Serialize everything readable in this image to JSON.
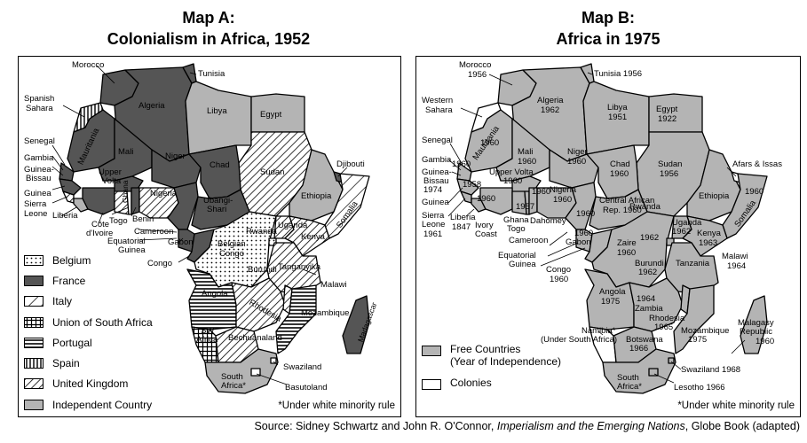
{
  "mapA": {
    "title_line1": "Map A:",
    "title_line2": "Colonialism in Africa, 1952",
    "legend": [
      {
        "label": "Belgium",
        "pattern": "dots"
      },
      {
        "label": "France",
        "pattern": "dark"
      },
      {
        "label": "Italy",
        "pattern": "sparse-diag"
      },
      {
        "label": "Union of South Africa",
        "pattern": "grid"
      },
      {
        "label": "Portugal",
        "pattern": "horiz"
      },
      {
        "label": "Spain",
        "pattern": "vert"
      },
      {
        "label": "United Kingdom",
        "pattern": "diag"
      },
      {
        "label": "Independent Country",
        "pattern": "gray"
      }
    ],
    "note": "*Under white minority rule",
    "labels": {
      "morocco": "Morocco",
      "tunisia": "Tunisia",
      "spanish_sahara_1": "Spanish",
      "spanish_sahara_2": "Sahara",
      "algeria": "Algeria",
      "libya": "Libya",
      "egypt": "Egypt",
      "senegal": "Senegal",
      "mauritania": "Mauritania",
      "mali": "Mali",
      "niger": "Niger",
      "chad": "Chad",
      "sudan": "Sudan",
      "djibouti": "Djibouti",
      "gambia": "Gambia",
      "guinea_bissau_1": "Guinea-",
      "guinea_bissau_2": "Bissau",
      "upper_volta_1": "Upper",
      "upper_volta_2": "Volta",
      "guinea": "Guinea",
      "sierra_leone_1": "Sierra",
      "sierra_leone_2": "Leone",
      "liberia": "Liberia",
      "ghana": "Ghana",
      "nigeria": "Nigeria",
      "ubangi_1": "Ubangi-",
      "ubangi_2": "Shari",
      "ethiopia": "Ethiopia",
      "somalia": "Somalia",
      "cote_1": "Côte",
      "cote_2": "d'Ivoire",
      "togo": "Togo",
      "benin": "Benin",
      "cameroon": "Cameroon",
      "eq_guinea_1": "Equatorial",
      "eq_guinea_2": "Guinea",
      "gabon": "Gabon",
      "congo": "Congo",
      "belgian_congo_1": "Belgian",
      "belgian_congo_2": "Congo",
      "rwanda": "Rwanda",
      "uganda": "Uganda",
      "kenya": "Kenya",
      "burundi": "Burundi",
      "tanganyika": "Tanganyika",
      "malawi": "Malawi",
      "angola": "Angola",
      "rhodesia": "Rhodesia",
      "mozambique": "Mozambique",
      "madagascar": "Madagascar",
      "sw_africa_1": "SW",
      "sw_africa_2": "Africa",
      "bechuanaland": "Bechuanaland",
      "swaziland": "Swaziland",
      "south_africa_1": "South",
      "south_africa_2": "Africa*",
      "basutoland": "Basutoland"
    }
  },
  "mapB": {
    "title_line1": "Map B:",
    "title_line2": "Africa in 1975",
    "legend": [
      {
        "label_1": "Free Countries",
        "label_2": "(Year of Independence)",
        "pattern": "gray"
      },
      {
        "label_1": "Colonies",
        "label_2": "",
        "pattern": "white"
      }
    ],
    "note": "*Under white minority rule",
    "labels": {
      "morocco_1": "Morocco",
      "morocco_2": "1956",
      "tunisia": "Tunisia 1956",
      "western_sahara_1": "Western",
      "western_sahara_2": "Sahara",
      "algeria_1": "Algeria",
      "algeria_2": "1962",
      "libya_1": "Libya",
      "libya_2": "1951",
      "egypt_1": "Egypt",
      "egypt_2": "1922",
      "senegal": "Senegal",
      "mauritania_1": "Mauritania",
      "mauritania_2": "1960",
      "mali_1": "Mali",
      "mali_2": "1960",
      "niger_1": "Niger",
      "niger_2": "1960",
      "chad_1": "Chad",
      "chad_2": "1960",
      "sudan_1": "Sudan",
      "sudan_2": "1956",
      "afars": "Afars & Issas",
      "gambia": "Gambia",
      "senegal_yr": "1960",
      "guinea_bissau_1": "Guinea-",
      "guinea_bissau_2": "Bissau",
      "guinea_bissau_3": "1974",
      "upper_volta_1": "Upper Volta",
      "upper_volta_2": "1960",
      "yr_1958": "1958",
      "yr_1960_a": "1960",
      "nigeria_1": "Nigeria",
      "nigeria_2": "1960",
      "car_1": "Central African",
      "car_2": "Rep. 1960",
      "ethiopia": "Ethiopia",
      "ethiopia_yr": "1960",
      "somalia": "Somalia",
      "guinea": "Guinea",
      "sierra_1": "Sierra",
      "sierra_2": "Leone",
      "sierra_3": "1961",
      "liberia_1": "Liberia",
      "liberia_2": "1847",
      "yr_1957": "1957",
      "ghana": "Ghana",
      "togo": "Togo",
      "dahomey": "Dahomey",
      "yr_1960_b": "1960",
      "yr_1960_c": "1960",
      "ivory_1": "Ivory",
      "ivory_2": "Coast",
      "cameroon": "Cameroon",
      "gabon_yr": "1960",
      "gabon": "Gabon",
      "rwanda_1": "Rwanda",
      "rwanda_2": "1962",
      "uganda_1": "Uganda",
      "uganda_2": "1962",
      "kenya_1": "Kenya",
      "kenya_2": "1963",
      "zaire_1": "Zaire",
      "zaire_2": "1960",
      "burundi_1": "Burundi",
      "burundi_2": "1962",
      "tanzania": "Tanzania",
      "eq_guinea_1": "Equatorial",
      "eq_guinea_2": "Guinea",
      "congo_1": "Congo",
      "congo_2": "1960",
      "malawi_1": "Malawi",
      "malawi_2": "1964",
      "angola_1": "Angola",
      "angola_2": "1975",
      "zambia_1": "1964",
      "zambia_2": "Zambia",
      "rhodesia_1": "Rhodesia",
      "rhodesia_2": "1965",
      "mozambique_1": "Mozambique",
      "mozambique_2": "1975",
      "malagasy_1": "Malagasy",
      "malagasy_2": "Republic",
      "malagasy_3": "1960",
      "namibia_1": "Namibia*",
      "namibia_2": "(Under South Africa)",
      "botswana_1": "Botswana",
      "botswana_2": "1966",
      "swaziland": "Swaziland 1968",
      "south_africa_1": "South",
      "south_africa_2": "Africa*",
      "lesotho": "Lesotho 1966"
    }
  },
  "source": {
    "prefix": "Source: Sidney Schwartz and John R. O'Connor, ",
    "book": "Imperialism and the Emerging Nations",
    "suffix": ", Globe Book (adapted)"
  },
  "colors": {
    "france": "#555555",
    "independent": "#b4b4b4",
    "colony": "#ffffff",
    "outline": "#000000"
  }
}
